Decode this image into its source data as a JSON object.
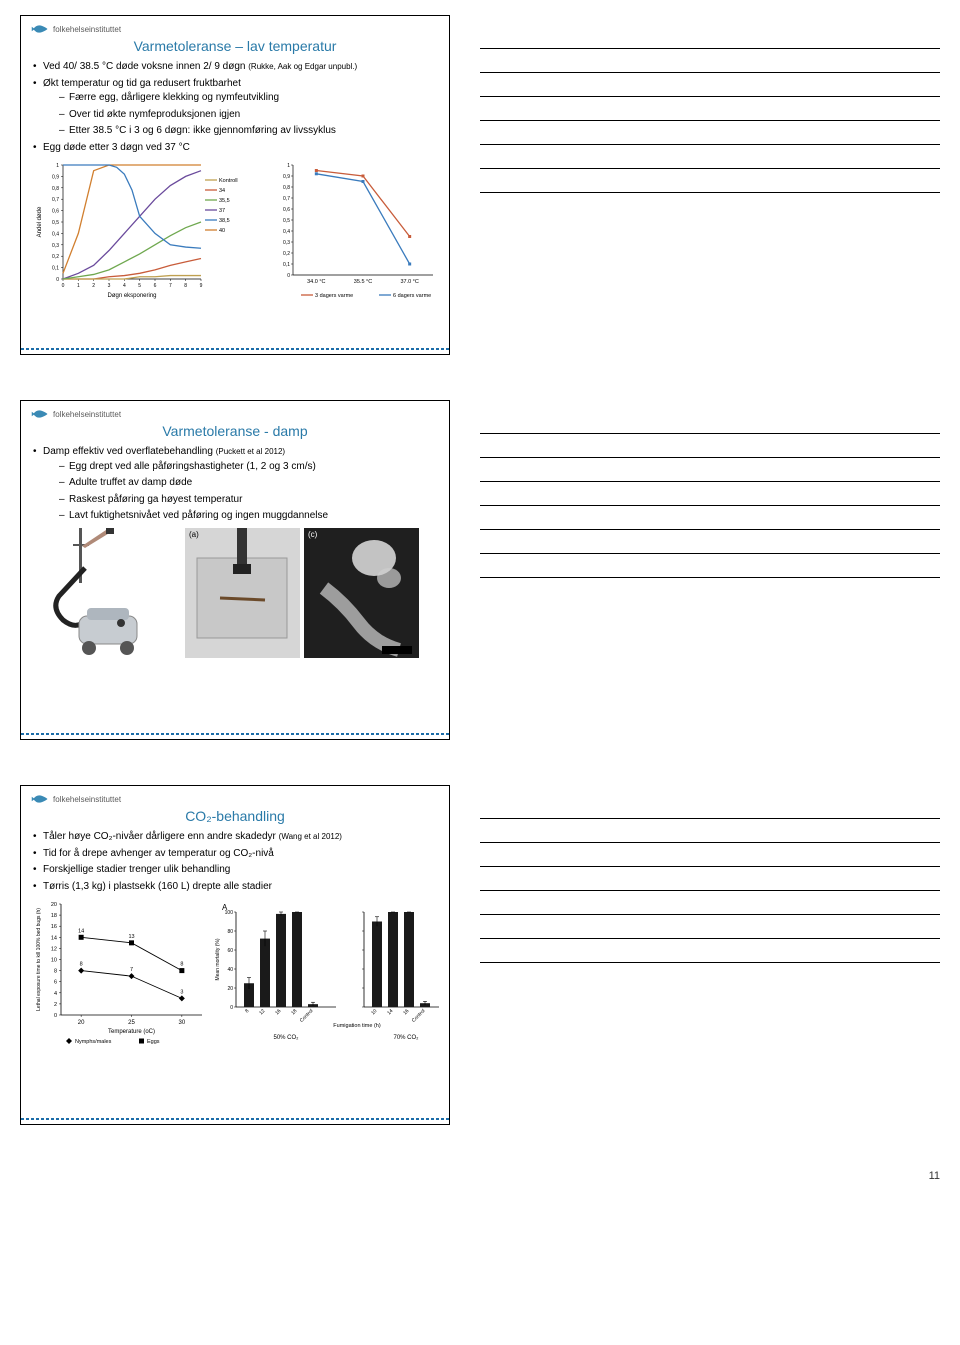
{
  "logo_text": "folkehelseinstituttet",
  "page_number": "11",
  "slide1": {
    "title": "Varmetoleranse – lav temperatur",
    "b1": "Ved 40/ 38.5 °C døde voksne innen 2/ 9 døgn ",
    "b1_cite": "(Rukke, Aak og Edgar unpubl.)",
    "b2": "Økt temperatur og tid ga redusert fruktbarhet",
    "b2_1": "Færre egg, dårligere klekking og nymfeutvikling",
    "b2_2": "Over tid økte nymfeproduksjonen igjen",
    "b2_3": "Etter 38.5 °C i 3 og 6 døgn: ikke gjennomføring av livssyklus",
    "b3": "Egg døde etter 3 døgn ved 37 °C",
    "chart1": {
      "ylabel": "Andel døde",
      "xlabel": "Døgn eksponering",
      "x_ticks": [
        "0",
        "1",
        "2",
        "3",
        "4",
        "5",
        "6",
        "7",
        "8",
        "9"
      ],
      "y_ticks": [
        "0",
        "0,1",
        "0,2",
        "0,3",
        "0,4",
        "0,5",
        "0,6",
        "0,7",
        "0,8",
        "0,9",
        "1"
      ],
      "legend": [
        "Kontroll",
        "34",
        "35,5",
        "37",
        "38,5",
        "40"
      ],
      "legend_colors": [
        "#bfa050",
        "#c85c3a",
        "#6fa84f",
        "#6a4a9c",
        "#3a7bbd",
        "#d17f2f"
      ],
      "series": {
        "Kontroll": {
          "color": "#bfa050",
          "pts": [
            [
              0,
              0
            ],
            [
              1,
              0
            ],
            [
              2,
              0
            ],
            [
              3,
              0
            ],
            [
              4,
              0
            ],
            [
              5,
              0.02
            ],
            [
              6,
              0.02
            ],
            [
              7,
              0.03
            ],
            [
              8,
              0.03
            ],
            [
              9,
              0.03
            ]
          ]
        },
        "34": {
          "color": "#c85c3a",
          "pts": [
            [
              0,
              0
            ],
            [
              1,
              0
            ],
            [
              2,
              0
            ],
            [
              3,
              0.02
            ],
            [
              4,
              0.03
            ],
            [
              5,
              0.05
            ],
            [
              6,
              0.08
            ],
            [
              7,
              0.12
            ],
            [
              8,
              0.15
            ],
            [
              9,
              0.18
            ]
          ]
        },
        "35_5": {
          "color": "#6fa84f",
          "pts": [
            [
              0,
              0
            ],
            [
              1,
              0.02
            ],
            [
              2,
              0.04
            ],
            [
              3,
              0.08
            ],
            [
              4,
              0.15
            ],
            [
              5,
              0.22
            ],
            [
              6,
              0.3
            ],
            [
              7,
              0.38
            ],
            [
              8,
              0.45
            ],
            [
              9,
              0.5
            ]
          ]
        },
        "37": {
          "color": "#6a4a9c",
          "pts": [
            [
              0,
              0
            ],
            [
              1,
              0.05
            ],
            [
              2,
              0.12
            ],
            [
              3,
              0.25
            ],
            [
              4,
              0.4
            ],
            [
              5,
              0.55
            ],
            [
              6,
              0.7
            ],
            [
              7,
              0.82
            ],
            [
              8,
              0.9
            ],
            [
              9,
              0.95
            ]
          ]
        },
        "38_5": {
          "color": "#3a7bbd",
          "pts": [
            [
              0,
              1.0
            ],
            [
              1,
              1.0
            ],
            [
              2,
              1.0
            ],
            [
              3,
              1.0
            ],
            [
              3.5,
              0.98
            ],
            [
              4,
              0.92
            ],
            [
              4.5,
              0.78
            ],
            [
              5,
              0.55
            ],
            [
              6,
              0.4
            ],
            [
              7,
              0.3
            ],
            [
              8,
              0.28
            ],
            [
              9,
              0.27
            ]
          ]
        },
        "40": {
          "color": "#d17f2f",
          "pts": [
            [
              0,
              0.05
            ],
            [
              1,
              0.4
            ],
            [
              2,
              0.95
            ],
            [
              3,
              1.0
            ],
            [
              4,
              1.0
            ],
            [
              5,
              1.0
            ],
            [
              6,
              1.0
            ],
            [
              7,
              1.0
            ],
            [
              8,
              1.0
            ],
            [
              9,
              1.0
            ]
          ]
        }
      }
    },
    "chart2": {
      "y_ticks": [
        "0",
        "0,1",
        "0,2",
        "0,3",
        "0,4",
        "0,5",
        "0,6",
        "0,7",
        "0,8",
        "0,9",
        "1"
      ],
      "x_cats": [
        "34.0 °C",
        "35.5 °C",
        "37.0 °C"
      ],
      "leg": [
        "3 dagers varme",
        "6 dagers varme"
      ],
      "leg_colors": [
        "#c85c3a",
        "#3a7bbd"
      ],
      "series": {
        "3d": {
          "color": "#c85c3a",
          "pts": [
            [
              0,
              0.95
            ],
            [
              1,
              0.9
            ],
            [
              2,
              0.35
            ]
          ]
        },
        "6d": {
          "color": "#3a7bbd",
          "pts": [
            [
              0,
              0.92
            ],
            [
              1,
              0.85
            ],
            [
              2,
              0.1
            ]
          ]
        }
      }
    }
  },
  "slide2": {
    "title": "Varmetoleranse - damp",
    "b1": "Damp effektiv ved overflatebehandling ",
    "b1_cite": "(Puckett et al 2012)",
    "b1_1": "Egg drept ved alle påføringshastigheter (1, 2 og 3 cm/s)",
    "b1_2": "Adulte truffet av damp døde",
    "b1_3": "Raskest påføring ga høyest temperatur",
    "b1_4": "Lavt fuktighetsnivået ved påføring og ingen muggdannelse",
    "label_a": "(a)",
    "label_c": "(c)"
  },
  "slide3": {
    "title": "CO₂-behandling",
    "b1": "Tåler høye CO₂-nivåer dårligere enn andre skadedyr ",
    "b1_cite": "(Wang et al 2012)",
    "b2": "Tid for å drepe avhenger av temperatur og CO₂-nivå",
    "b3": "Forskjellige stadier trenger ulik behandling",
    "b4": "Tørris (1,3 kg) i plastsekk (160 L) drepte alle stadier",
    "chart1": {
      "ylabel": "Lethal exposure time to kill 100% bed bugs (h)",
      "xlabel": "Temperature (oC)",
      "y_ticks": [
        "0",
        "2",
        "4",
        "6",
        "8",
        "10",
        "12",
        "14",
        "16",
        "18",
        "20"
      ],
      "x_ticks": [
        "20",
        "25",
        "30"
      ],
      "legend": [
        "Nymphs/males",
        "Eggs"
      ],
      "leg_markers": [
        "diamond",
        "square"
      ],
      "data_nymphs": {
        "20": 8,
        "25": 7,
        "30": 3
      },
      "data_eggs": {
        "20": 14,
        "25": 13,
        "30": 8
      },
      "color": "#000"
    },
    "chart2": {
      "label_A": "A",
      "ylabel": "Mean mortality (%)",
      "y_ticks": [
        "0",
        "20",
        "40",
        "60",
        "80",
        "100"
      ],
      "x_cats_50": [
        "8",
        "12",
        "16",
        "18",
        "Control"
      ],
      "vals_50": [
        25,
        72,
        98,
        100,
        3
      ],
      "err_50": [
        6,
        8,
        2,
        0,
        2
      ],
      "xlabel_50": "50% CO₂",
      "x_cats_70": [
        "10",
        "14",
        "16",
        "Control"
      ],
      "vals_70": [
        90,
        100,
        100,
        4
      ],
      "err_70": [
        5,
        0,
        0,
        2
      ],
      "xlabel_70": "70% CO₂",
      "xlabel_bottom": "Fumigation time (h)",
      "bar_color": "#1a1a1a"
    }
  },
  "notes_lines": 7
}
